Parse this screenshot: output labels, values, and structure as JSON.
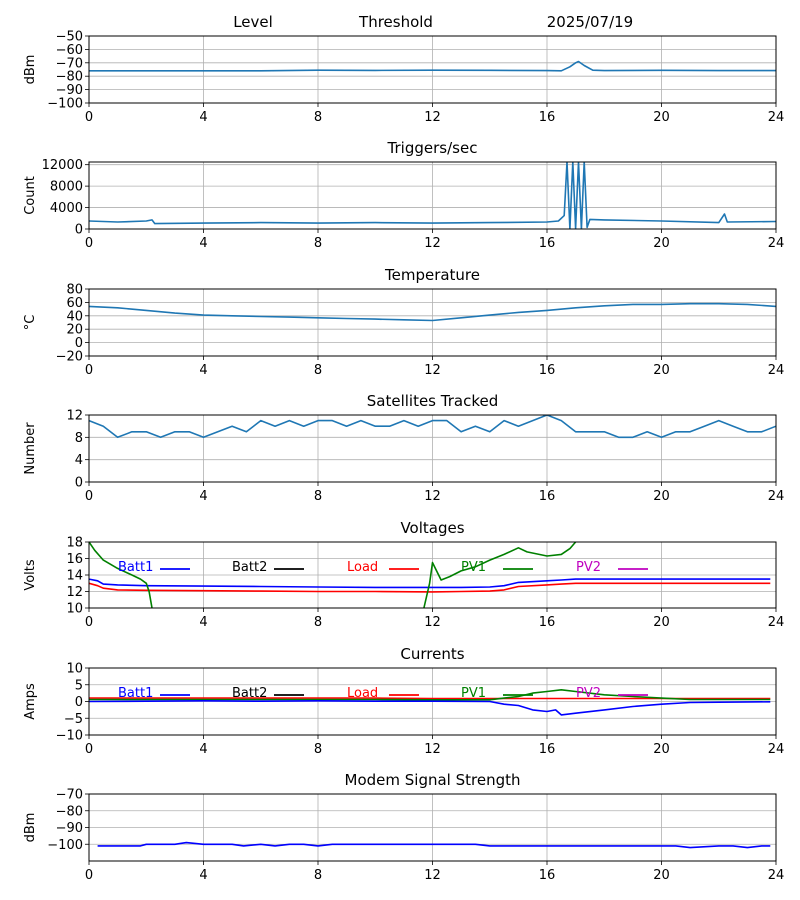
{
  "header": {
    "level": "Level",
    "threshold": "Threshold",
    "date": "2025/07/19"
  },
  "x_ticks": [
    "0",
    "4",
    "8",
    "12",
    "16",
    "20",
    "24"
  ],
  "chart_data": [
    {
      "type": "line",
      "title": "",
      "ylabel": "dBm",
      "xlim": [
        0,
        24
      ],
      "ylim": [
        -100,
        -50
      ],
      "yticks": [
        -100,
        -90,
        -80,
        -70,
        -60,
        -50
      ],
      "ytick_labels": [
        "−100",
        "−90",
        "−80",
        "−70",
        "−60",
        "−50"
      ],
      "grid": true,
      "legend": [],
      "series": [
        {
          "color": "#1f77b4",
          "x": [
            0,
            2,
            4,
            6,
            8,
            10,
            12,
            14,
            16,
            16.5,
            16.8,
            17.0,
            17.1,
            17.3,
            17.6,
            18,
            20,
            22,
            24
          ],
          "y": [
            -76,
            -76,
            -76,
            -76,
            -75.5,
            -75.7,
            -75.5,
            -75.6,
            -75.8,
            -76,
            -73,
            -70,
            -69,
            -72,
            -75.5,
            -75.8,
            -75.6,
            -75.8,
            -75.8
          ]
        }
      ]
    },
    {
      "type": "line",
      "title": "Triggers/sec",
      "ylabel": "Count",
      "xlim": [
        0,
        24
      ],
      "ylim": [
        0,
        12500
      ],
      "yticks": [
        0,
        4000,
        8000,
        12000
      ],
      "ytick_labels": [
        "0",
        "4000",
        "8000",
        "12000"
      ],
      "grid": true,
      "legend": [],
      "series": [
        {
          "color": "#1f77b4",
          "x": [
            0,
            1,
            2,
            2.2,
            2.3,
            4,
            6,
            8,
            10,
            12,
            14,
            16,
            16.4,
            16.6,
            16.7,
            16.8,
            16.9,
            17.0,
            17.1,
            17.2,
            17.3,
            17.4,
            17.5,
            18,
            20,
            22,
            22.2,
            22.3,
            24
          ],
          "y": [
            1500,
            1300,
            1500,
            1700,
            1000,
            1100,
            1200,
            1100,
            1200,
            1100,
            1200,
            1300,
            1500,
            2500,
            12500,
            0,
            12500,
            100,
            12500,
            0,
            12500,
            300,
            1800,
            1700,
            1500,
            1200,
            2800,
            1300,
            1400
          ]
        }
      ]
    },
    {
      "type": "line",
      "title": "Temperature",
      "ylabel": "°C",
      "xlim": [
        0,
        24
      ],
      "ylim": [
        -20,
        80
      ],
      "yticks": [
        -20,
        0,
        20,
        40,
        60,
        80
      ],
      "ytick_labels": [
        "−20",
        "0",
        "20",
        "40",
        "60",
        "80"
      ],
      "grid": true,
      "legend": [],
      "series": [
        {
          "color": "#1f77b4",
          "x": [
            0,
            1,
            2,
            3,
            4,
            5,
            6,
            7,
            8,
            9,
            10,
            11,
            12,
            13,
            14,
            15,
            16,
            17,
            18,
            19,
            20,
            21,
            22,
            23,
            24
          ],
          "y": [
            54,
            52,
            48,
            44,
            41,
            40,
            39,
            38,
            37,
            36,
            35,
            34,
            33,
            37,
            41,
            45,
            48,
            52,
            55,
            57,
            57,
            58,
            58,
            57,
            54
          ]
        }
      ]
    },
    {
      "type": "line",
      "title": "Satellites Tracked",
      "ylabel": "Number",
      "xlim": [
        0,
        24
      ],
      "ylim": [
        0,
        12
      ],
      "yticks": [
        0,
        4,
        8,
        12
      ],
      "ytick_labels": [
        "0",
        "4",
        "8",
        "12"
      ],
      "grid": true,
      "legend": [],
      "series": [
        {
          "color": "#1f77b4",
          "x": [
            0,
            0.5,
            1,
            1.5,
            2,
            2.5,
            3,
            3.5,
            4,
            4.5,
            5,
            5.5,
            6,
            6.5,
            7,
            7.5,
            8,
            8.5,
            9,
            9.5,
            10,
            10.5,
            11,
            11.5,
            12,
            12.5,
            13,
            13.5,
            14,
            14.5,
            15,
            15.5,
            16,
            16.5,
            17,
            17.5,
            18,
            18.5,
            19,
            19.5,
            20,
            20.5,
            21,
            21.5,
            22,
            22.5,
            23,
            23.5,
            24
          ],
          "y": [
            11,
            10,
            8,
            9,
            9,
            8,
            9,
            9,
            8,
            9,
            10,
            9,
            11,
            10,
            11,
            10,
            11,
            11,
            10,
            11,
            10,
            10,
            11,
            10,
            11,
            11,
            9,
            10,
            9,
            11,
            10,
            11,
            12,
            11,
            9,
            9,
            9,
            8,
            8,
            9,
            8,
            9,
            9,
            10,
            11,
            10,
            9,
            9,
            10
          ]
        }
      ]
    },
    {
      "type": "line",
      "title": "Voltages",
      "ylabel": "Volts",
      "xlim": [
        0,
        24
      ],
      "ylim": [
        10,
        18
      ],
      "yticks": [
        10,
        12,
        14,
        16,
        18
      ],
      "ytick_labels": [
        "10",
        "12",
        "14",
        "16",
        "18"
      ],
      "grid": true,
      "legend": [
        {
          "name": "Batt1",
          "color": "#0000ff"
        },
        {
          "name": "Batt2",
          "color": "#000000"
        },
        {
          "name": "Load",
          "color": "#ff0000"
        },
        {
          "name": "PV1",
          "color": "#008000"
        },
        {
          "name": "PV2",
          "color": "#bf00bf"
        }
      ],
      "series": [
        {
          "name": "Batt1",
          "color": "#0000ff",
          "x": [
            0,
            0.3,
            0.5,
            1,
            2,
            4,
            6,
            8,
            10,
            12,
            13,
            14,
            14.5,
            15,
            16,
            16.5,
            17,
            20,
            23.8
          ],
          "y": [
            13.5,
            13.3,
            12.9,
            12.8,
            12.7,
            12.65,
            12.6,
            12.55,
            12.5,
            12.5,
            12.5,
            12.55,
            12.7,
            13.1,
            13.3,
            13.4,
            13.5,
            13.5,
            13.5
          ]
        },
        {
          "name": "Load",
          "color": "#ff0000",
          "x": [
            0,
            0.3,
            0.5,
            1,
            2,
            4,
            6,
            8,
            10,
            12,
            13,
            14,
            14.5,
            15,
            16,
            16.5,
            17,
            20,
            23.8
          ],
          "y": [
            13,
            12.7,
            12.4,
            12.2,
            12.15,
            12.1,
            12.05,
            12,
            12,
            11.95,
            12,
            12.05,
            12.2,
            12.6,
            12.8,
            12.9,
            13,
            13,
            13
          ]
        },
        {
          "name": "PV1",
          "color": "#008000",
          "x": [
            0,
            0.2,
            0.5,
            1,
            1.5,
            1.8,
            2,
            2.1,
            2.2
          ],
          "y": [
            18,
            17,
            15.8,
            14.8,
            14,
            13.5,
            13,
            12,
            10
          ]
        },
        {
          "name": "PV1",
          "color": "#008000",
          "x": [
            11.7,
            11.9,
            12,
            12.3,
            12.6,
            13,
            13.5,
            14,
            14.5,
            15,
            15.3,
            16,
            16.5,
            16.8,
            17
          ],
          "y": [
            10,
            13,
            15.5,
            13.4,
            13.8,
            14.5,
            15,
            15.8,
            16.5,
            17.3,
            16.8,
            16.3,
            16.5,
            17.2,
            18
          ]
        }
      ]
    },
    {
      "type": "line",
      "title": "Currents",
      "ylabel": "Amps",
      "xlim": [
        0,
        24
      ],
      "ylim": [
        -10,
        10
      ],
      "yticks": [
        -10,
        -5,
        0,
        5,
        10
      ],
      "ytick_labels": [
        "−10",
        "−5",
        "0",
        "5",
        "10"
      ],
      "grid": true,
      "legend": [
        {
          "name": "Batt1",
          "color": "#0000ff"
        },
        {
          "name": "Batt2",
          "color": "#000000"
        },
        {
          "name": "Load",
          "color": "#ff0000"
        },
        {
          "name": "PV1",
          "color": "#008000"
        },
        {
          "name": "PV2",
          "color": "#bf00bf"
        }
      ],
      "series": [
        {
          "name": "Load",
          "color": "#ff0000",
          "x": [
            0,
            2,
            4,
            6,
            8,
            10,
            12,
            14,
            16,
            18,
            20,
            22,
            23.8
          ],
          "y": [
            1,
            1,
            1,
            1,
            1,
            1,
            0.9,
            0.9,
            0.9,
            0.9,
            0.9,
            0.9,
            0.9
          ]
        },
        {
          "name": "PV1",
          "color": "#008000",
          "x": [
            0,
            2,
            4,
            6,
            8,
            10,
            12,
            14,
            14.5,
            15,
            15.5,
            16,
            16.5,
            17,
            18,
            19,
            20,
            21,
            22,
            23.8
          ],
          "y": [
            0.6,
            0.6,
            0.6,
            0.6,
            0.6,
            0.6,
            0.5,
            0.5,
            1,
            1.5,
            2.5,
            3,
            3.5,
            3,
            2,
            1.5,
            1,
            0.6,
            0.6,
            0.6
          ]
        },
        {
          "name": "Batt1",
          "color": "#0000ff",
          "x": [
            0,
            2,
            4,
            6,
            8,
            10,
            12,
            14,
            14.5,
            15,
            15.5,
            16,
            16.3,
            16.5,
            17,
            18,
            19,
            20,
            21,
            22,
            23.8
          ],
          "y": [
            0,
            0.1,
            0.2,
            0.1,
            0.2,
            0.1,
            0.1,
            0,
            -0.8,
            -1.2,
            -2.5,
            -3,
            -2.5,
            -4,
            -3.5,
            -2.5,
            -1.5,
            -0.8,
            -0.3,
            -0.2,
            -0.1
          ]
        }
      ]
    },
    {
      "type": "line",
      "title": "Modem Signal Strength",
      "ylabel": "dBm",
      "xlim": [
        0,
        24
      ],
      "ylim": [
        -110,
        -70
      ],
      "yticks": [
        -100,
        -90,
        -80,
        -70
      ],
      "ytick_labels": [
        "−100",
        "−90",
        "−80",
        "−70"
      ],
      "grid": true,
      "legend": [],
      "series": [
        {
          "color": "#0000ff",
          "x": [
            0.3,
            1,
            1.8,
            2,
            2.5,
            3,
            3.4,
            4,
            4.5,
            5,
            5.4,
            6,
            6.5,
            7,
            7.5,
            8,
            8.5,
            9,
            10,
            11,
            12,
            13,
            13.5,
            14,
            15,
            16,
            17,
            18,
            19,
            20,
            20.5,
            21,
            22,
            22.5,
            23,
            23.5,
            23.8
          ],
          "y": [
            -101,
            -101,
            -101,
            -100,
            -100,
            -100,
            -99,
            -100,
            -100,
            -100,
            -101,
            -100,
            -101,
            -100,
            -100,
            -101,
            -100,
            -100,
            -100,
            -100,
            -100,
            -100,
            -100,
            -101,
            -101,
            -101,
            -101,
            -101,
            -101,
            -101,
            -101,
            -102,
            -101,
            -101,
            -102,
            -101,
            -101
          ]
        }
      ]
    }
  ]
}
